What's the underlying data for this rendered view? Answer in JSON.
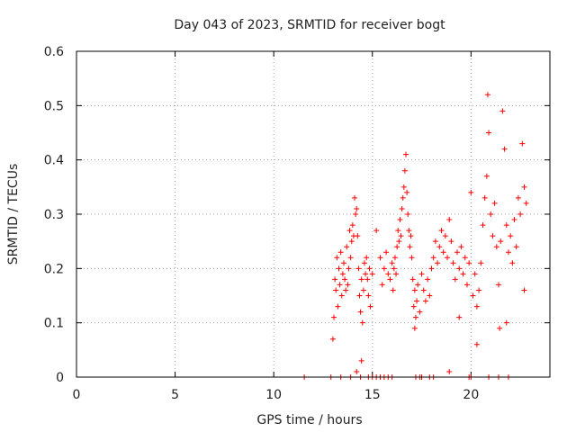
{
  "chart_data": {
    "type": "scatter",
    "title": "Day 043 of 2023, SRMTID for receiver bogt",
    "xlabel": "GPS time / hours",
    "ylabel": "SRMTID / TECUs",
    "xlim": [
      0,
      24
    ],
    "ylim": [
      0,
      0.6
    ],
    "xticks": [
      0,
      5,
      10,
      15,
      20
    ],
    "xtick_labels": [
      "0",
      "5",
      "10",
      "15",
      "20"
    ],
    "yticks": [
      0,
      0.1,
      0.2,
      0.3,
      0.4,
      0.5,
      0.6
    ],
    "ytick_labels": [
      "0",
      "0.1",
      "0.2",
      "0.3",
      "0.4",
      "0.5",
      "0.6"
    ],
    "grid": true,
    "marker": "+",
    "color": "#ff0000",
    "series": [
      {
        "name": "SRMTID",
        "points": [
          [
            13.0,
            0.07
          ],
          [
            13.05,
            0.11
          ],
          [
            13.1,
            0.18
          ],
          [
            13.15,
            0.16
          ],
          [
            13.2,
            0.22
          ],
          [
            13.25,
            0.13
          ],
          [
            13.3,
            0.2
          ],
          [
            13.35,
            0.17
          ],
          [
            13.4,
            0.23
          ],
          [
            13.45,
            0.15
          ],
          [
            13.5,
            0.19
          ],
          [
            13.55,
            0.21
          ],
          [
            13.6,
            0.18
          ],
          [
            13.65,
            0.16
          ],
          [
            13.7,
            0.24
          ],
          [
            13.75,
            0.17
          ],
          [
            13.8,
            0.2
          ],
          [
            13.85,
            0.27
          ],
          [
            13.9,
            0.22
          ],
          [
            13.95,
            0.25
          ],
          [
            14.0,
            0.28
          ],
          [
            14.05,
            0.26
          ],
          [
            14.1,
            0.33
          ],
          [
            14.15,
            0.3
          ],
          [
            14.2,
            0.31
          ],
          [
            14.25,
            0.26
          ],
          [
            14.3,
            0.2
          ],
          [
            14.35,
            0.15
          ],
          [
            14.4,
            0.12
          ],
          [
            14.45,
            0.18
          ],
          [
            14.5,
            0.1
          ],
          [
            14.55,
            0.16
          ],
          [
            14.6,
            0.21
          ],
          [
            14.65,
            0.19
          ],
          [
            14.7,
            0.22
          ],
          [
            14.75,
            0.18
          ],
          [
            14.8,
            0.15
          ],
          [
            14.85,
            0.2
          ],
          [
            14.9,
            0.13
          ],
          [
            15.0,
            0.19
          ],
          [
            15.2,
            0.27
          ],
          [
            15.4,
            0.22
          ],
          [
            15.5,
            0.17
          ],
          [
            15.6,
            0.2
          ],
          [
            15.7,
            0.23
          ],
          [
            15.8,
            0.19
          ],
          [
            15.9,
            0.18
          ],
          [
            16.0,
            0.21
          ],
          [
            16.05,
            0.16
          ],
          [
            16.1,
            0.2
          ],
          [
            16.15,
            0.22
          ],
          [
            16.2,
            0.19
          ],
          [
            16.25,
            0.24
          ],
          [
            16.3,
            0.27
          ],
          [
            16.35,
            0.25
          ],
          [
            16.4,
            0.29
          ],
          [
            16.45,
            0.26
          ],
          [
            16.5,
            0.31
          ],
          [
            16.55,
            0.33
          ],
          [
            16.6,
            0.35
          ],
          [
            16.65,
            0.38
          ],
          [
            16.7,
            0.41
          ],
          [
            16.75,
            0.34
          ],
          [
            16.8,
            0.3
          ],
          [
            16.85,
            0.27
          ],
          [
            16.9,
            0.24
          ],
          [
            16.95,
            0.26
          ],
          [
            17.0,
            0.22
          ],
          [
            17.05,
            0.18
          ],
          [
            17.1,
            0.13
          ],
          [
            17.15,
            0.16
          ],
          [
            17.2,
            0.11
          ],
          [
            17.25,
            0.14
          ],
          [
            17.3,
            0.17
          ],
          [
            17.4,
            0.12
          ],
          [
            17.5,
            0.19
          ],
          [
            17.6,
            0.16
          ],
          [
            17.7,
            0.14
          ],
          [
            17.8,
            0.18
          ],
          [
            17.9,
            0.15
          ],
          [
            18.0,
            0.2
          ],
          [
            18.1,
            0.22
          ],
          [
            18.2,
            0.25
          ],
          [
            18.3,
            0.21
          ],
          [
            18.4,
            0.24
          ],
          [
            18.5,
            0.27
          ],
          [
            18.6,
            0.23
          ],
          [
            18.7,
            0.26
          ],
          [
            18.8,
            0.22
          ],
          [
            18.9,
            0.29
          ],
          [
            19.0,
            0.25
          ],
          [
            19.1,
            0.21
          ],
          [
            19.2,
            0.18
          ],
          [
            19.3,
            0.23
          ],
          [
            19.4,
            0.2
          ],
          [
            19.5,
            0.24
          ],
          [
            19.6,
            0.19
          ],
          [
            19.7,
            0.22
          ],
          [
            19.8,
            0.17
          ],
          [
            19.9,
            0.21
          ],
          [
            20.0,
            0.34
          ],
          [
            20.1,
            0.15
          ],
          [
            20.2,
            0.19
          ],
          [
            20.3,
            0.13
          ],
          [
            20.4,
            0.16
          ],
          [
            20.5,
            0.21
          ],
          [
            20.6,
            0.28
          ],
          [
            20.7,
            0.33
          ],
          [
            20.8,
            0.37
          ],
          [
            20.85,
            0.52
          ],
          [
            20.9,
            0.45
          ],
          [
            21.0,
            0.3
          ],
          [
            21.1,
            0.26
          ],
          [
            21.2,
            0.32
          ],
          [
            21.3,
            0.24
          ],
          [
            21.4,
            0.17
          ],
          [
            21.5,
            0.25
          ],
          [
            21.6,
            0.49
          ],
          [
            21.7,
            0.42
          ],
          [
            21.8,
            0.28
          ],
          [
            21.9,
            0.23
          ],
          [
            22.0,
            0.26
          ],
          [
            22.1,
            0.21
          ],
          [
            22.2,
            0.29
          ],
          [
            22.3,
            0.24
          ],
          [
            22.4,
            0.33
          ],
          [
            22.5,
            0.3
          ],
          [
            22.6,
            0.43
          ],
          [
            22.7,
            0.35
          ],
          [
            22.8,
            0.32
          ],
          [
            11.55,
            0.0
          ],
          [
            12.9,
            0.0
          ],
          [
            13.4,
            0.0
          ],
          [
            13.9,
            0.0
          ],
          [
            14.4,
            0.0
          ],
          [
            14.8,
            0.0
          ],
          [
            15.0,
            0.0
          ],
          [
            15.2,
            0.0
          ],
          [
            15.4,
            0.0
          ],
          [
            15.6,
            0.0
          ],
          [
            15.8,
            0.0
          ],
          [
            16.0,
            0.0
          ],
          [
            17.2,
            0.0
          ],
          [
            17.4,
            0.0
          ],
          [
            17.5,
            0.0
          ],
          [
            17.9,
            0.0
          ],
          [
            18.1,
            0.0
          ],
          [
            19.9,
            0.0
          ],
          [
            20.0,
            0.0
          ],
          [
            20.9,
            0.0
          ],
          [
            21.4,
            0.0
          ],
          [
            21.9,
            0.0
          ],
          [
            14.45,
            0.03
          ],
          [
            14.2,
            0.01
          ],
          [
            18.9,
            0.01
          ],
          [
            17.15,
            0.09
          ],
          [
            20.3,
            0.06
          ],
          [
            21.45,
            0.09
          ],
          [
            21.8,
            0.1
          ],
          [
            22.7,
            0.16
          ],
          [
            19.4,
            0.11
          ]
        ]
      }
    ]
  }
}
